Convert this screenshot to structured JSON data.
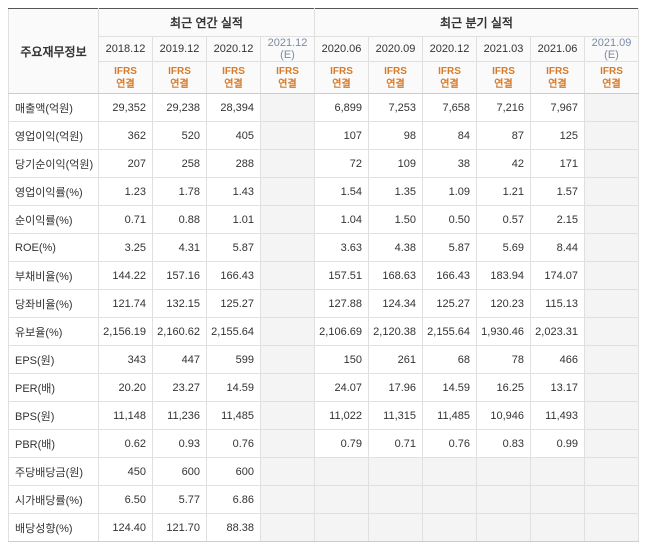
{
  "headers": {
    "rowLabelHeader": "주요재무정보",
    "annualGroup": "최근 연간 실적",
    "quarterGroup": "최근 분기 실적",
    "ifrsLabel": "IFRS\n연결",
    "annualPeriods": [
      {
        "label": "2018.12",
        "est": false
      },
      {
        "label": "2019.12",
        "est": false
      },
      {
        "label": "2020.12",
        "est": false
      },
      {
        "label": "2021.12 (E)",
        "est": true
      }
    ],
    "quarterPeriods": [
      {
        "label": "2020.06",
        "est": false
      },
      {
        "label": "2020.09",
        "est": false
      },
      {
        "label": "2020.12",
        "est": false
      },
      {
        "label": "2021.03",
        "est": false
      },
      {
        "label": "2021.06",
        "est": false
      },
      {
        "label": "2021.09 (E)",
        "est": true
      }
    ]
  },
  "style": {
    "colors": {
      "border": "#e0e0e0",
      "borderStrong": "#ccc",
      "borderTop": "#555",
      "headerBg": "#fafafa",
      "ifrsText": "#d67b29",
      "estText": "#7a8ba6",
      "shadedBg": "#f4f4f4",
      "text": "#333"
    },
    "widths": {
      "table": 631,
      "labelCol": 90,
      "dataCol": 54
    },
    "heights": {
      "groupHeader": 28,
      "periodHeader": 24,
      "ifrsHeader": 32,
      "row": 28
    },
    "fontSizes": {
      "base": 11,
      "groupHeader": 12,
      "ifrs": 10
    }
  },
  "rows": [
    {
      "label": "매출액(억원)",
      "section": true,
      "annual": [
        "29,352",
        "29,238",
        "28,394",
        ""
      ],
      "quarter": [
        "6,899",
        "7,253",
        "7,658",
        "7,216",
        "7,967",
        ""
      ],
      "shadeEmpty": false
    },
    {
      "label": "영업이익(억원)",
      "section": false,
      "annual": [
        "362",
        "520",
        "405",
        ""
      ],
      "quarter": [
        "107",
        "98",
        "84",
        "87",
        "125",
        ""
      ],
      "shadeEmpty": false
    },
    {
      "label": "당기순이익(억원)",
      "section": false,
      "annual": [
        "207",
        "258",
        "288",
        ""
      ],
      "quarter": [
        "72",
        "109",
        "38",
        "42",
        "171",
        ""
      ],
      "shadeEmpty": false
    },
    {
      "label": "영업이익률(%)",
      "section": true,
      "annual": [
        "1.23",
        "1.78",
        "1.43",
        ""
      ],
      "quarter": [
        "1.54",
        "1.35",
        "1.09",
        "1.21",
        "1.57",
        ""
      ],
      "shadeEmpty": false
    },
    {
      "label": "순이익률(%)",
      "section": false,
      "annual": [
        "0.71",
        "0.88",
        "1.01",
        ""
      ],
      "quarter": [
        "1.04",
        "1.50",
        "0.50",
        "0.57",
        "2.15",
        ""
      ],
      "shadeEmpty": false
    },
    {
      "label": "ROE(%)",
      "section": false,
      "annual": [
        "3.25",
        "4.31",
        "5.87",
        ""
      ],
      "quarter": [
        "3.63",
        "4.38",
        "5.87",
        "5.69",
        "8.44",
        ""
      ],
      "shadeEmpty": false
    },
    {
      "label": "부채비율(%)",
      "section": true,
      "annual": [
        "144.22",
        "157.16",
        "166.43",
        ""
      ],
      "quarter": [
        "157.51",
        "168.63",
        "166.43",
        "183.94",
        "174.07",
        ""
      ],
      "shadeEmpty": false
    },
    {
      "label": "당좌비율(%)",
      "section": false,
      "annual": [
        "121.74",
        "132.15",
        "125.27",
        ""
      ],
      "quarter": [
        "127.88",
        "124.34",
        "125.27",
        "120.23",
        "115.13",
        ""
      ],
      "shadeEmpty": false
    },
    {
      "label": "유보율(%)",
      "section": false,
      "annual": [
        "2,156.19",
        "2,160.62",
        "2,155.64",
        ""
      ],
      "quarter": [
        "2,106.69",
        "2,120.38",
        "2,155.64",
        "1,930.46",
        "2,023.31",
        ""
      ],
      "shadeEmpty": false
    },
    {
      "label": "EPS(원)",
      "section": true,
      "annual": [
        "343",
        "447",
        "599",
        ""
      ],
      "quarter": [
        "150",
        "261",
        "68",
        "78",
        "466",
        ""
      ],
      "shadeEmpty": false
    },
    {
      "label": "PER(배)",
      "section": false,
      "annual": [
        "20.20",
        "23.27",
        "14.59",
        ""
      ],
      "quarter": [
        "24.07",
        "17.96",
        "14.59",
        "16.25",
        "13.17",
        ""
      ],
      "shadeEmpty": false
    },
    {
      "label": "BPS(원)",
      "section": false,
      "annual": [
        "11,148",
        "11,236",
        "11,485",
        ""
      ],
      "quarter": [
        "11,022",
        "11,315",
        "11,485",
        "10,946",
        "11,493",
        ""
      ],
      "shadeEmpty": false
    },
    {
      "label": "PBR(배)",
      "section": false,
      "annual": [
        "0.62",
        "0.93",
        "0.76",
        ""
      ],
      "quarter": [
        "0.79",
        "0.71",
        "0.76",
        "0.83",
        "0.99",
        ""
      ],
      "shadeEmpty": false
    },
    {
      "label": "주당배당금(원)",
      "section": true,
      "annual": [
        "450",
        "600",
        "600",
        ""
      ],
      "quarter": [
        "",
        "",
        "",
        "",
        "",
        ""
      ],
      "shadeEmpty": true
    },
    {
      "label": "시가배당률(%)",
      "section": false,
      "annual": [
        "6.50",
        "5.77",
        "6.86",
        ""
      ],
      "quarter": [
        "",
        "",
        "",
        "",
        "",
        ""
      ],
      "shadeEmpty": true
    },
    {
      "label": "배당성향(%)",
      "section": false,
      "annual": [
        "124.40",
        "121.70",
        "88.38",
        ""
      ],
      "quarter": [
        "",
        "",
        "",
        "",
        "",
        ""
      ],
      "shadeEmpty": true
    }
  ]
}
